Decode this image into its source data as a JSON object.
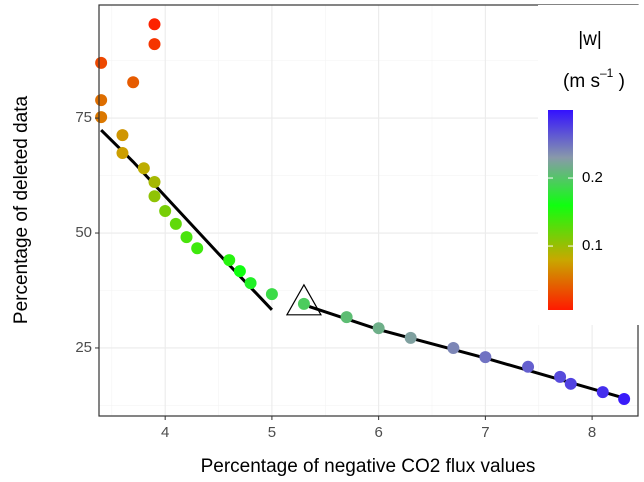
{
  "chart_data": {
    "type": "scatter",
    "x_label": "Percentage of negative CO2 flux values",
    "y_label": "Percentage of deleted data",
    "xlim": [
      3.38,
      8.43
    ],
    "ylim": [
      10.2,
      99.6
    ],
    "xticks": [
      4,
      5,
      6,
      7,
      8
    ],
    "yticks": [
      25,
      50,
      75
    ],
    "xminor": [
      3.5,
      4.5,
      5.5,
      6.5,
      7.5
    ],
    "yminor": [
      12.5,
      37.5,
      62.5,
      87.5
    ],
    "grid": true,
    "x": [
      3.9,
      3.9,
      3.4,
      3.7,
      3.4,
      3.4,
      3.6,
      3.6,
      3.8,
      3.9,
      3.9,
      4.0,
      4.1,
      4.2,
      4.3,
      4.6,
      4.7,
      4.8,
      5.0,
      5.3,
      5.7,
      6.0,
      6.3,
      6.7,
      7.0,
      7.4,
      7.7,
      7.8,
      8.1,
      8.3
    ],
    "values": [
      95.4,
      91.1,
      87.0,
      82.8,
      78.9,
      75.2,
      71.3,
      67.4,
      64.1,
      61.1,
      58.0,
      54.8,
      52.0,
      49.1,
      46.7,
      44.1,
      41.7,
      39.1,
      36.7,
      34.6,
      31.7,
      29.3,
      27.2,
      25.0,
      23.0,
      20.9,
      18.7,
      17.2,
      15.4,
      13.9
    ],
    "w": [
      0.01,
      0.02,
      0.03,
      0.04,
      0.05,
      0.055,
      0.07,
      0.075,
      0.085,
      0.095,
      0.105,
      0.115,
      0.125,
      0.135,
      0.14,
      0.15,
      0.16,
      0.17,
      0.185,
      0.195,
      0.205,
      0.215,
      0.225,
      0.24,
      0.25,
      0.26,
      0.27,
      0.275,
      0.285,
      0.295
    ],
    "fit_lines": [
      {
        "x": [
          3.4,
          3.7,
          4.0,
          4.5,
          5.0
        ],
        "y": [
          72.4,
          65.5,
          58.0,
          45.5,
          33.3
        ]
      },
      {
        "x": [
          5.35,
          6.0,
          7.0,
          8.3
        ],
        "y": [
          34.0,
          29.0,
          22.8,
          14.1
        ]
      }
    ],
    "triangle": {
      "x": 5.3,
      "y": 34.6
    },
    "legend_title": "|w|",
    "legend_units": {
      "open": "(m s",
      "sup": "–1",
      "close": " )"
    },
    "clim": [
      0.006,
      0.3
    ],
    "cticks": [
      0.1,
      0.2
    ],
    "colorscale": [
      {
        "value": 0.006,
        "color": "#ff1a00"
      },
      {
        "value": 0.08,
        "color": "#c8a800"
      },
      {
        "value": 0.16,
        "color": "#10ff10"
      },
      {
        "value": 0.23,
        "color": "#8899aa"
      },
      {
        "value": 0.3,
        "color": "#3311ff"
      }
    ]
  }
}
